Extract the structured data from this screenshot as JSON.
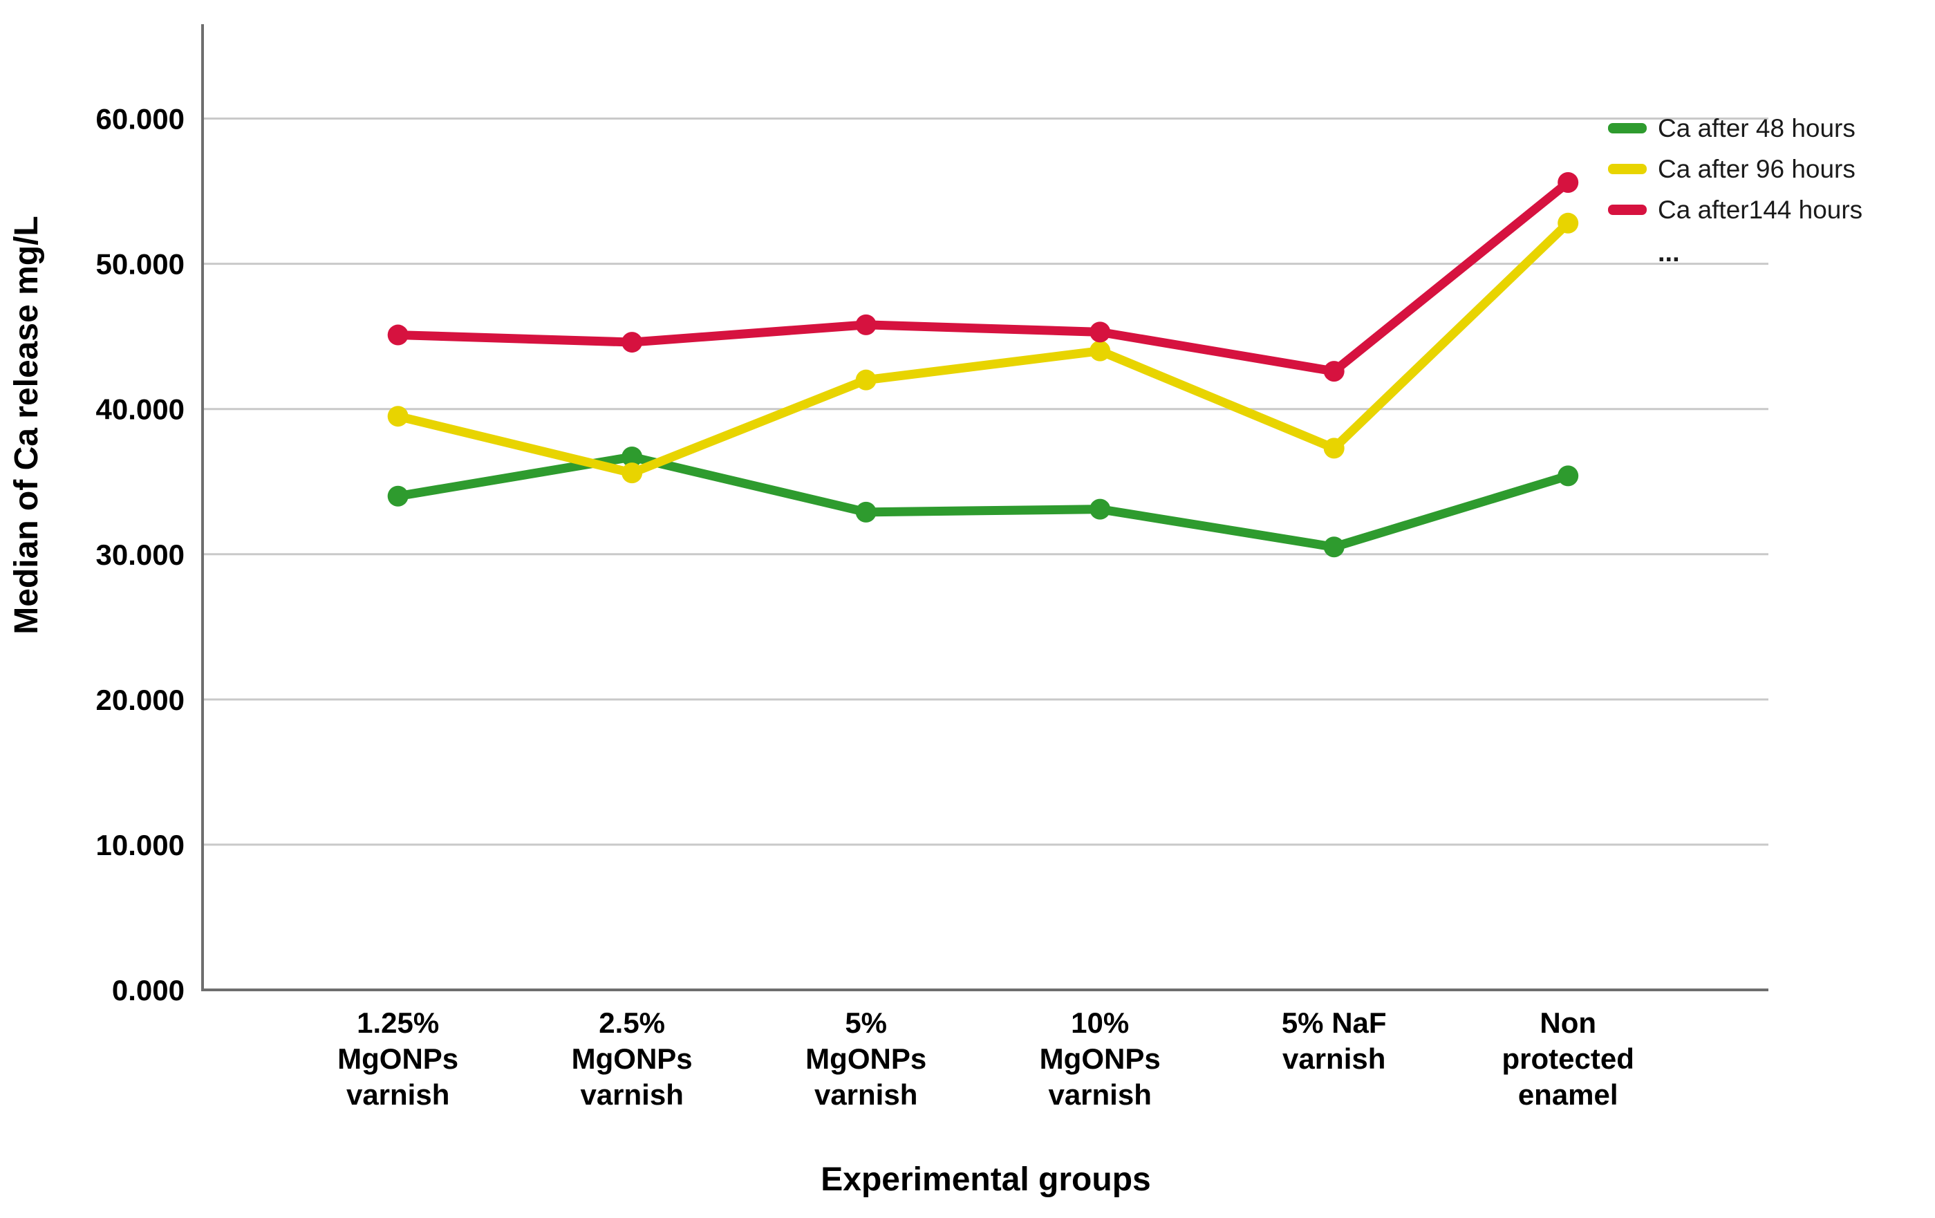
{
  "chart_data": {
    "type": "line",
    "title": "",
    "xlabel": "Experimental groups",
    "ylabel": "Median of Ca release mg/L",
    "categories": [
      [
        "1.25%",
        "MgONPs",
        "varnish"
      ],
      [
        "2.5%",
        "MgONPs",
        "varnish"
      ],
      [
        "5%",
        "MgONPs",
        "varnish"
      ],
      [
        "10%",
        "MgONPs",
        "varnish"
      ],
      [
        "5% NaF",
        "varnish"
      ],
      [
        "Non",
        "protected",
        "enamel"
      ]
    ],
    "series": [
      {
        "name": "Ca after 48 hours",
        "color": "#2e9b2e",
        "values": [
          34.0,
          36.7,
          32.9,
          33.1,
          30.5,
          35.4
        ]
      },
      {
        "name": "Ca after 96 hours",
        "color": "#e8d400",
        "values": [
          39.5,
          35.6,
          42.0,
          44.0,
          37.3,
          52.8
        ]
      },
      {
        "name": "Ca after144 hours",
        "color": "#d6123f",
        "values": [
          45.1,
          44.6,
          45.8,
          45.3,
          42.6,
          55.6
        ]
      }
    ],
    "legend_ellipsis": "...",
    "legend_position": "top-right",
    "yticks": [
      0,
      10,
      20,
      30,
      40,
      50,
      60
    ],
    "ytick_labels": [
      "0.000",
      "10.000",
      "20.000",
      "30.000",
      "40.000",
      "50.000",
      "60.000"
    ],
    "ylim": [
      0,
      66.5
    ],
    "grid": true,
    "colors": {
      "grid": "#c9c9c9",
      "axis": "#6e6e6e",
      "text": "#000000"
    }
  }
}
